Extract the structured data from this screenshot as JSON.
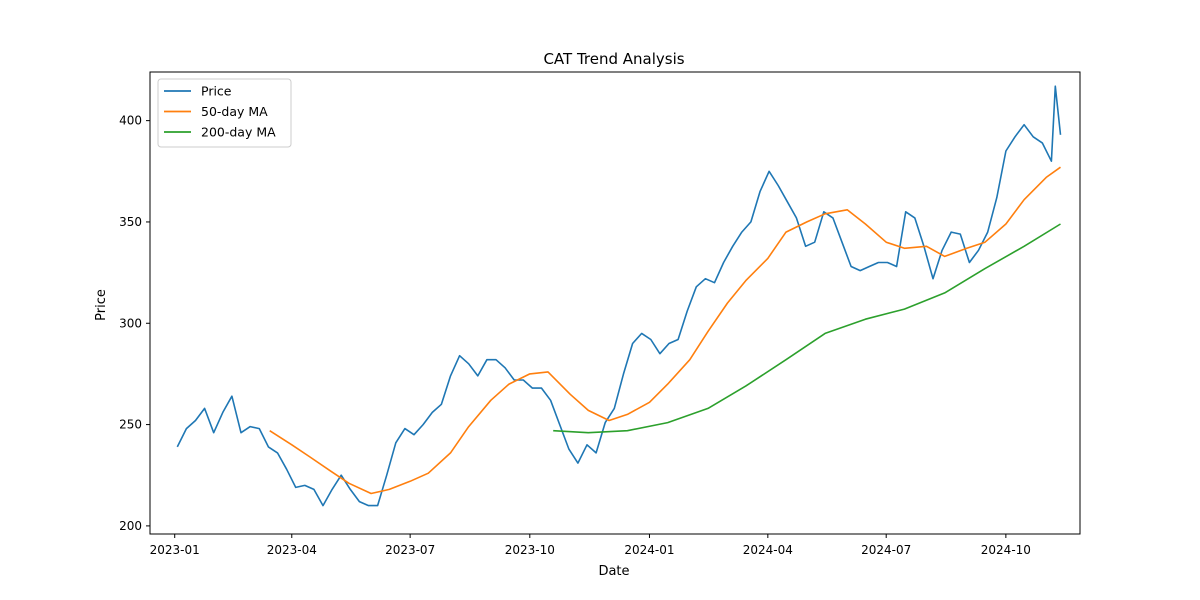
{
  "chart_data": {
    "type": "line",
    "title": "CAT Trend Analysis",
    "xlabel": "Date",
    "ylabel": "Price",
    "x_range": [
      "2022-12-13",
      "2024-11-27"
    ],
    "ylim": [
      196,
      424
    ],
    "grid": false,
    "legend_position": "top-left",
    "x_ticks": [
      "2023-01",
      "2023-04",
      "2023-07",
      "2023-10",
      "2024-01",
      "2024-04",
      "2024-07",
      "2024-10"
    ],
    "y_ticks": [
      200,
      250,
      300,
      350,
      400
    ],
    "series": [
      {
        "name": "Price",
        "color": "#1f77b4",
        "points": [
          [
            "2023-01-03",
            239
          ],
          [
            "2023-01-10",
            248
          ],
          [
            "2023-01-17",
            252
          ],
          [
            "2023-01-24",
            258
          ],
          [
            "2023-01-31",
            246
          ],
          [
            "2023-02-07",
            256
          ],
          [
            "2023-02-14",
            264
          ],
          [
            "2023-02-21",
            246
          ],
          [
            "2023-02-28",
            249
          ],
          [
            "2023-03-07",
            248
          ],
          [
            "2023-03-14",
            239
          ],
          [
            "2023-03-21",
            236
          ],
          [
            "2023-03-28",
            228
          ],
          [
            "2023-04-04",
            219
          ],
          [
            "2023-04-11",
            220
          ],
          [
            "2023-04-18",
            218
          ],
          [
            "2023-04-25",
            210
          ],
          [
            "2023-05-02",
            218
          ],
          [
            "2023-05-09",
            225
          ],
          [
            "2023-05-16",
            218
          ],
          [
            "2023-05-23",
            212
          ],
          [
            "2023-05-30",
            210
          ],
          [
            "2023-06-06",
            210
          ],
          [
            "2023-06-13",
            225
          ],
          [
            "2023-06-20",
            241
          ],
          [
            "2023-06-27",
            248
          ],
          [
            "2023-07-04",
            245
          ],
          [
            "2023-07-11",
            250
          ],
          [
            "2023-07-18",
            256
          ],
          [
            "2023-07-25",
            260
          ],
          [
            "2023-08-01",
            274
          ],
          [
            "2023-08-08",
            284
          ],
          [
            "2023-08-15",
            280
          ],
          [
            "2023-08-22",
            274
          ],
          [
            "2023-08-29",
            282
          ],
          [
            "2023-09-05",
            282
          ],
          [
            "2023-09-12",
            278
          ],
          [
            "2023-09-19",
            272
          ],
          [
            "2023-09-26",
            272
          ],
          [
            "2023-10-03",
            268
          ],
          [
            "2023-10-10",
            268
          ],
          [
            "2023-10-17",
            262
          ],
          [
            "2023-10-24",
            250
          ],
          [
            "2023-10-31",
            238
          ],
          [
            "2023-11-07",
            231
          ],
          [
            "2023-11-14",
            240
          ],
          [
            "2023-11-21",
            236
          ],
          [
            "2023-11-28",
            251
          ],
          [
            "2023-12-05",
            258
          ],
          [
            "2023-12-12",
            275
          ],
          [
            "2023-12-19",
            290
          ],
          [
            "2023-12-26",
            295
          ],
          [
            "2024-01-02",
            292
          ],
          [
            "2024-01-09",
            285
          ],
          [
            "2024-01-16",
            290
          ],
          [
            "2024-01-23",
            292
          ],
          [
            "2024-01-30",
            306
          ],
          [
            "2024-02-06",
            318
          ],
          [
            "2024-02-13",
            322
          ],
          [
            "2024-02-20",
            320
          ],
          [
            "2024-02-27",
            330
          ],
          [
            "2024-03-05",
            338
          ],
          [
            "2024-03-12",
            345
          ],
          [
            "2024-03-19",
            350
          ],
          [
            "2024-03-26",
            365
          ],
          [
            "2024-04-02",
            375
          ],
          [
            "2024-04-09",
            368
          ],
          [
            "2024-04-16",
            360
          ],
          [
            "2024-04-23",
            352
          ],
          [
            "2024-04-30",
            338
          ],
          [
            "2024-05-07",
            340
          ],
          [
            "2024-05-14",
            355
          ],
          [
            "2024-05-21",
            352
          ],
          [
            "2024-05-28",
            340
          ],
          [
            "2024-06-04",
            328
          ],
          [
            "2024-06-11",
            326
          ],
          [
            "2024-06-18",
            328
          ],
          [
            "2024-06-25",
            330
          ],
          [
            "2024-07-02",
            330
          ],
          [
            "2024-07-09",
            328
          ],
          [
            "2024-07-16",
            355
          ],
          [
            "2024-07-23",
            352
          ],
          [
            "2024-07-30",
            338
          ],
          [
            "2024-08-06",
            322
          ],
          [
            "2024-08-13",
            336
          ],
          [
            "2024-08-20",
            345
          ],
          [
            "2024-08-27",
            344
          ],
          [
            "2024-09-03",
            330
          ],
          [
            "2024-09-10",
            336
          ],
          [
            "2024-09-17",
            345
          ],
          [
            "2024-09-24",
            362
          ],
          [
            "2024-10-01",
            385
          ],
          [
            "2024-10-08",
            392
          ],
          [
            "2024-10-15",
            398
          ],
          [
            "2024-10-22",
            392
          ],
          [
            "2024-10-29",
            389
          ],
          [
            "2024-11-05",
            380
          ],
          [
            "2024-11-08",
            417
          ],
          [
            "2024-11-12",
            393
          ]
        ]
      },
      {
        "name": "50-day MA",
        "color": "#ff7f0e",
        "points": [
          [
            "2023-03-15",
            247
          ],
          [
            "2023-04-01",
            240
          ],
          [
            "2023-04-15",
            234
          ],
          [
            "2023-05-01",
            227
          ],
          [
            "2023-05-15",
            221
          ],
          [
            "2023-06-01",
            216
          ],
          [
            "2023-06-15",
            218
          ],
          [
            "2023-07-01",
            222
          ],
          [
            "2023-07-15",
            226
          ],
          [
            "2023-08-01",
            236
          ],
          [
            "2023-08-15",
            249
          ],
          [
            "2023-09-01",
            262
          ],
          [
            "2023-09-15",
            270
          ],
          [
            "2023-10-01",
            275
          ],
          [
            "2023-10-15",
            276
          ],
          [
            "2023-11-01",
            265
          ],
          [
            "2023-11-15",
            257
          ],
          [
            "2023-12-01",
            252
          ],
          [
            "2023-12-15",
            255
          ],
          [
            "2024-01-01",
            261
          ],
          [
            "2024-01-15",
            270
          ],
          [
            "2024-02-01",
            282
          ],
          [
            "2024-02-15",
            296
          ],
          [
            "2024-03-01",
            310
          ],
          [
            "2024-03-15",
            321
          ],
          [
            "2024-04-01",
            332
          ],
          [
            "2024-04-15",
            345
          ],
          [
            "2024-05-01",
            350
          ],
          [
            "2024-05-15",
            354
          ],
          [
            "2024-06-01",
            356
          ],
          [
            "2024-06-15",
            349
          ],
          [
            "2024-07-01",
            340
          ],
          [
            "2024-07-15",
            337
          ],
          [
            "2024-08-01",
            338
          ],
          [
            "2024-08-15",
            333
          ],
          [
            "2024-09-01",
            337
          ],
          [
            "2024-09-15",
            340
          ],
          [
            "2024-10-01",
            349
          ],
          [
            "2024-10-15",
            361
          ],
          [
            "2024-11-01",
            372
          ],
          [
            "2024-11-12",
            377
          ]
        ]
      },
      {
        "name": "200-day MA",
        "color": "#2ca02c",
        "points": [
          [
            "2023-10-19",
            247
          ],
          [
            "2023-11-15",
            246
          ],
          [
            "2023-12-15",
            247
          ],
          [
            "2024-01-15",
            251
          ],
          [
            "2024-02-15",
            258
          ],
          [
            "2024-03-15",
            269
          ],
          [
            "2024-04-15",
            282
          ],
          [
            "2024-05-15",
            295
          ],
          [
            "2024-06-15",
            302
          ],
          [
            "2024-07-15",
            307
          ],
          [
            "2024-08-15",
            315
          ],
          [
            "2024-09-15",
            327
          ],
          [
            "2024-10-15",
            338
          ],
          [
            "2024-11-12",
            349
          ]
        ]
      }
    ]
  }
}
